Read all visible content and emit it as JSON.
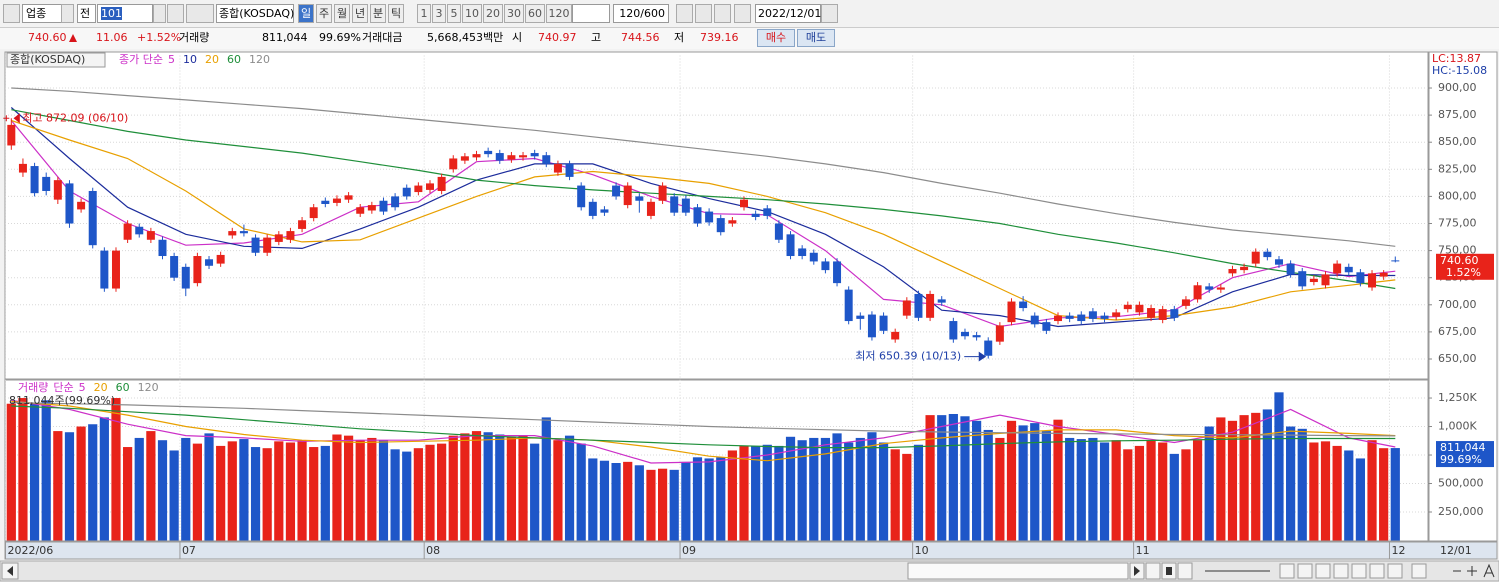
{
  "toolbar": {
    "market": "업종",
    "scope": "전",
    "code": "101",
    "index_name": "종합(KOSDAQ)",
    "periods": [
      "일",
      "주",
      "월",
      "년",
      "분",
      "틱"
    ],
    "intervals": [
      "1",
      "3",
      "5",
      "10",
      "20",
      "30",
      "60",
      "120"
    ],
    "count": "120/600",
    "date": "2022/12/01"
  },
  "quote": {
    "price": "740.60",
    "change": "11.06",
    "change_pct": "+1.52%",
    "volume_label": "거래량",
    "volume": "811,044",
    "volume_ratio": "99.69%",
    "value_label": "거래대금",
    "value": "5,668,453백만",
    "open_label": "시",
    "open": "740.97",
    "high_label": "고",
    "high": "744.56",
    "low_label": "저",
    "low": "739.16",
    "buy": "매수",
    "sell": "매도"
  },
  "chart_data": [
    {
      "type": "candlestick",
      "title": "종합(KOSDAQ)",
      "ma_label": "종가 단순",
      "up_color": "#e8231a",
      "down_color": "#1e56c8",
      "grid": true,
      "open": [
        847,
        822,
        828,
        818,
        797,
        812,
        788,
        805,
        750,
        715,
        760,
        772,
        760,
        760,
        745,
        735,
        720,
        742,
        738,
        764,
        768,
        762,
        748,
        758,
        760,
        770,
        780,
        796,
        794,
        797,
        784,
        787,
        796,
        800,
        808,
        804,
        806,
        805,
        825,
        833,
        836,
        842,
        840,
        834,
        836,
        840,
        838,
        822,
        830,
        810,
        795,
        788,
        810,
        792,
        800,
        782,
        796,
        800,
        798,
        790,
        786,
        780,
        775,
        790,
        784,
        789,
        775,
        765,
        752,
        748,
        740,
        740,
        714,
        690,
        691,
        690,
        668,
        690,
        710,
        688,
        705,
        685,
        675,
        672,
        667,
        666,
        684,
        703,
        690,
        684,
        685,
        690,
        691,
        694,
        690,
        689,
        696,
        693,
        688,
        686,
        696,
        699,
        705,
        717,
        714,
        729,
        732,
        738,
        749,
        742,
        738,
        731,
        721,
        718,
        729,
        735,
        730,
        716,
        726,
        740.97
      ],
      "high": [
        872.09,
        835,
        831,
        822,
        818,
        815,
        798,
        808,
        753,
        753,
        778,
        775,
        771,
        763,
        748,
        738,
        748,
        745,
        749,
        771,
        774,
        765,
        765,
        768,
        771,
        781,
        793,
        799,
        801,
        804,
        793,
        795,
        799,
        803,
        811,
        813,
        815,
        821,
        838,
        840,
        842,
        845,
        843,
        841,
        841,
        843,
        841,
        833,
        833,
        813,
        798,
        791,
        813,
        813,
        803,
        798,
        813,
        803,
        801,
        793,
        789,
        783,
        781,
        800,
        787,
        792,
        778,
        768,
        755,
        751,
        743,
        743,
        717,
        693,
        694,
        693,
        678,
        707,
        713,
        713,
        708,
        688,
        678,
        675,
        670,
        684,
        706,
        708,
        693,
        687,
        693,
        693,
        694,
        697,
        693,
        696,
        703,
        703,
        700,
        699,
        699,
        708,
        721,
        720,
        719,
        736,
        738,
        752,
        752,
        745,
        741,
        734,
        727,
        731,
        741,
        738,
        733,
        732,
        732,
        744.56
      ],
      "low": [
        843,
        818,
        800,
        801,
        793,
        771,
        785,
        752,
        712,
        712,
        757,
        762,
        757,
        742,
        722,
        708,
        717,
        733,
        735,
        761,
        763,
        745,
        745,
        755,
        757,
        767,
        777,
        790,
        791,
        794,
        781,
        784,
        783,
        787,
        797,
        801,
        803,
        802,
        822,
        830,
        833,
        836,
        830,
        831,
        833,
        834,
        827,
        819,
        815,
        787,
        779,
        782,
        797,
        789,
        785,
        779,
        793,
        782,
        782,
        772,
        773,
        764,
        772,
        787,
        778,
        779,
        757,
        742,
        742,
        737,
        729,
        717,
        682,
        677,
        667,
        673,
        665,
        687,
        685,
        685,
        699,
        665,
        668,
        667,
        650.39,
        663,
        681,
        694,
        679,
        673,
        682,
        684,
        682,
        684,
        684,
        686,
        693,
        690,
        685,
        683,
        685,
        696,
        702,
        711,
        711,
        726,
        729,
        735,
        741,
        734,
        725,
        714,
        718,
        715,
        726,
        727,
        717,
        713,
        723,
        739.16
      ],
      "close": [
        866,
        830,
        803,
        805,
        815,
        775,
        795,
        755,
        715,
        750,
        775,
        765,
        768,
        745,
        725,
        715,
        745,
        736,
        746,
        768,
        766,
        748,
        762,
        765,
        768,
        778,
        790,
        793,
        798,
        801,
        790,
        792,
        786,
        790,
        800,
        810,
        812,
        818,
        835,
        837,
        839,
        839,
        833,
        838,
        838,
        837,
        830,
        830,
        818,
        790,
        782,
        785,
        800,
        810,
        796,
        795,
        810,
        785,
        785,
        775,
        776,
        767,
        778,
        797,
        781,
        782,
        760,
        745,
        745,
        740,
        732,
        720,
        685,
        687,
        670,
        676,
        675,
        704,
        688,
        710,
        702,
        668,
        671,
        670,
        653,
        681,
        703,
        697,
        682,
        676,
        690,
        687,
        685,
        687,
        687,
        693,
        700,
        700,
        697,
        696,
        688,
        705,
        718,
        714,
        716,
        733,
        735,
        749,
        744,
        737,
        728,
        717,
        724,
        728,
        738,
        730,
        720,
        729,
        729.54,
        740.6
      ],
      "ma_x": [
        0,
        5,
        10,
        15,
        20,
        25,
        30,
        35,
        40,
        45,
        50,
        55,
        60,
        65,
        70,
        75,
        80,
        85,
        90,
        95,
        100,
        105,
        110,
        115,
        119
      ],
      "series": [
        {
          "name": "5",
          "color": "#cc30c8",
          "values": [
            870,
            805,
            775,
            755,
            757,
            765,
            790,
            795,
            832,
            835,
            820,
            800,
            784,
            783,
            750,
            705,
            700,
            680,
            688,
            689,
            695,
            725,
            738,
            726,
            731
          ]
        },
        {
          "name": "10",
          "color": "#1c2c9c",
          "values": [
            882,
            835,
            790,
            765,
            754,
            752,
            770,
            790,
            815,
            830,
            830,
            812,
            798,
            786,
            765,
            735,
            695,
            690,
            680,
            684,
            688,
            712,
            728,
            727,
            727
          ]
        },
        {
          "name": "20",
          "color": "#e8a000",
          "values": [
            870,
            852,
            835,
            805,
            770,
            758,
            760,
            780,
            800,
            818,
            823,
            818,
            812,
            800,
            785,
            765,
            740,
            715,
            690,
            686,
            690,
            698,
            712,
            718,
            723
          ]
        },
        {
          "name": "60",
          "color": "#1f8f3a",
          "values": [
            880,
            870,
            860,
            852,
            846,
            840,
            832,
            824,
            815,
            810,
            806,
            803,
            800,
            797,
            793,
            788,
            782,
            775,
            765,
            757,
            748,
            738,
            730,
            722,
            715
          ]
        },
        {
          "name": "120",
          "color": "#8c8c8c",
          "values": [
            900,
            897,
            893,
            889,
            885,
            881,
            876,
            871,
            866,
            861,
            855,
            849,
            843,
            837,
            830,
            822,
            812,
            803,
            793,
            784,
            776,
            769,
            764,
            759,
            754
          ]
        }
      ],
      "ylim": [
        632,
        930
      ],
      "yticks": [
        {
          "value": 900,
          "label": "900,00"
        },
        {
          "value": 875,
          "label": "875,00"
        },
        {
          "value": 850,
          "label": "850,00"
        },
        {
          "value": 825,
          "label": "825,00"
        },
        {
          "value": 800,
          "label": "800,00"
        },
        {
          "value": 775,
          "label": "775,00"
        },
        {
          "value": 750,
          "label": "750,00"
        },
        {
          "value": 725,
          "label": "725,00"
        },
        {
          "value": 700,
          "label": "700,00"
        },
        {
          "value": 675,
          "label": "675,00"
        },
        {
          "value": 650,
          "label": "650,00"
        }
      ],
      "lc_label": "LC:13.87",
      "hc_label": "HC:-15.08",
      "last_tag": {
        "value": 740.6,
        "label": "740.60"
      },
      "last_pct": "1.52%",
      "high_annotation": "최고 872.09 (06/10)",
      "low_annotation": "최저 650.39 (10/13)"
    },
    {
      "type": "bar",
      "title": "거래량",
      "ma_label": "단순",
      "grid": true,
      "values": [
        1200000,
        1250000,
        1210000,
        1230000,
        960000,
        950000,
        1000000,
        1020000,
        1080000,
        1250000,
        820000,
        900000,
        960000,
        880000,
        790000,
        900000,
        850000,
        940000,
        830000,
        870000,
        890000,
        820000,
        810000,
        870000,
        860000,
        880000,
        820000,
        830000,
        930000,
        920000,
        880000,
        900000,
        880000,
        800000,
        780000,
        810000,
        840000,
        850000,
        920000,
        940000,
        960000,
        950000,
        930000,
        910000,
        920000,
        850000,
        1080000,
        880000,
        920000,
        850000,
        720000,
        700000,
        680000,
        690000,
        660000,
        620000,
        630000,
        620000,
        690000,
        730000,
        720000,
        730000,
        790000,
        830000,
        830000,
        840000,
        830000,
        910000,
        880000,
        900000,
        900000,
        940000,
        860000,
        900000,
        950000,
        860000,
        800000,
        760000,
        840000,
        1100000,
        1100000,
        1110000,
        1090000,
        1050000,
        970000,
        900000,
        1050000,
        1010000,
        1030000,
        960000,
        1060000,
        900000,
        890000,
        900000,
        860000,
        880000,
        800000,
        830000,
        880000,
        860000,
        760000,
        800000,
        880000,
        1000000,
        1080000,
        1050000,
        1100000,
        1120000,
        1150000,
        1300000,
        1000000,
        980000,
        860000,
        870000,
        830000,
        790000,
        720000,
        880000,
        810000,
        811044
      ],
      "ma_x": [
        0,
        5,
        10,
        15,
        20,
        25,
        30,
        35,
        40,
        45,
        50,
        55,
        60,
        65,
        70,
        75,
        80,
        85,
        90,
        95,
        100,
        105,
        110,
        115,
        119
      ],
      "series": [
        {
          "name": "5",
          "color": "#cc30c8",
          "values": [
            1230000,
            1150000,
            1020000,
            920000,
            900000,
            870000,
            880000,
            880000,
            920000,
            920000,
            830000,
            680000,
            690000,
            750000,
            840000,
            900000,
            1000000,
            1100000,
            1000000,
            930000,
            860000,
            950000,
            1150000,
            900000,
            820000
          ]
        },
        {
          "name": "20",
          "color": "#e8a000",
          "values": [
            1220000,
            1180000,
            1100000,
            1000000,
            930000,
            880000,
            860000,
            870000,
            880000,
            900000,
            880000,
            820000,
            740000,
            700000,
            760000,
            850000,
            900000,
            940000,
            970000,
            970000,
            920000,
            900000,
            960000,
            940000,
            920000
          ]
        },
        {
          "name": "60",
          "color": "#1f8f3a",
          "values": [
            1180000,
            1160000,
            1130000,
            1100000,
            1060000,
            1020000,
            980000,
            950000,
            920000,
            900000,
            880000,
            860000,
            840000,
            825000,
            815000,
            815000,
            830000,
            850000,
            865000,
            875000,
            880000,
            890000,
            895000,
            895000,
            895000
          ]
        },
        {
          "name": "120",
          "color": "#8c8c8c",
          "values": [
            1210000,
            1200000,
            1190000,
            1175000,
            1160000,
            1140000,
            1120000,
            1100000,
            1080000,
            1060000,
            1040000,
            1020000,
            1000000,
            985000,
            972000,
            960000,
            952000,
            946000,
            940000,
            935000,
            930000,
            928000,
            925000,
            920000,
            918000
          ]
        }
      ],
      "ylim": [
        0,
        1410000
      ],
      "yticks": [
        {
          "value": 1250000,
          "label": "1,250K"
        },
        {
          "value": 1000000,
          "label": "1,000K"
        },
        {
          "value": 750000,
          "label": "750,000"
        },
        {
          "value": 500000,
          "label": "500,000"
        },
        {
          "value": 250000,
          "label": "250,000"
        }
      ],
      "xticks": [
        {
          "value": 0,
          "label": "2022/06"
        },
        {
          "value": 15,
          "label": "07"
        },
        {
          "value": 36,
          "label": "08"
        },
        {
          "value": 58,
          "label": "09"
        },
        {
          "value": 78,
          "label": "10"
        },
        {
          "value": 97,
          "label": "11"
        },
        {
          "value": 119,
          "label": "12"
        }
      ],
      "x_last_label": "12/01",
      "volume_annotation": "811,044주(99.69%)",
      "last_tag": {
        "value": 811044,
        "label": "811,044"
      },
      "last_pct": "99.69%"
    }
  ]
}
